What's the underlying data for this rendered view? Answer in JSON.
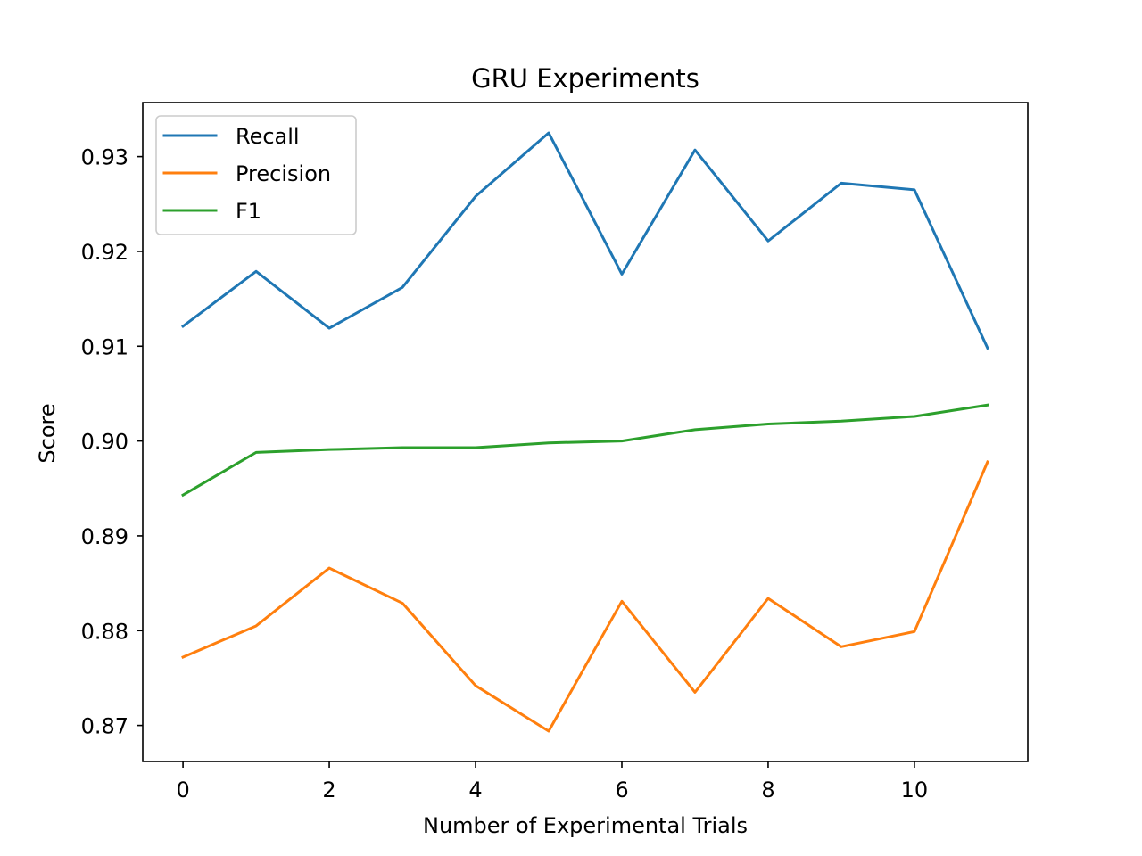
{
  "chart_data": {
    "type": "line",
    "title": "GRU Experiments",
    "xlabel": "Number of Experimental Trials",
    "ylabel": "Score",
    "x": [
      0,
      1,
      2,
      3,
      4,
      5,
      6,
      7,
      8,
      9,
      10,
      11
    ],
    "xlim": [
      -0.55,
      11.55
    ],
    "ylim": [
      0.8662,
      0.9357
    ],
    "xticks": [
      0,
      2,
      4,
      6,
      8,
      10
    ],
    "xtick_labels": [
      "0",
      "2",
      "4",
      "6",
      "8",
      "10"
    ],
    "yticks": [
      0.87,
      0.88,
      0.89,
      0.9,
      0.91,
      0.92,
      0.93
    ],
    "ytick_labels": [
      "0.87",
      "0.88",
      "0.89",
      "0.90",
      "0.91",
      "0.92",
      "0.93"
    ],
    "grid": false,
    "legend_position": "upper-left",
    "series": [
      {
        "name": "Recall",
        "color": "#1f77b4",
        "values": [
          0.9121,
          0.9179,
          0.9119,
          0.9162,
          0.9258,
          0.9325,
          0.9176,
          0.9307,
          0.9211,
          0.9272,
          0.9265,
          0.9098
        ]
      },
      {
        "name": "Precision",
        "color": "#ff7f0e",
        "values": [
          0.8772,
          0.8805,
          0.8866,
          0.8829,
          0.8742,
          0.8694,
          0.8831,
          0.8735,
          0.8834,
          0.8783,
          0.8799,
          0.8978
        ]
      },
      {
        "name": "F1",
        "color": "#2ca02c",
        "values": [
          0.8943,
          0.8988,
          0.8991,
          0.8993,
          0.8993,
          0.8998,
          0.9,
          0.9012,
          0.9018,
          0.9021,
          0.9026,
          0.9038
        ]
      }
    ]
  }
}
